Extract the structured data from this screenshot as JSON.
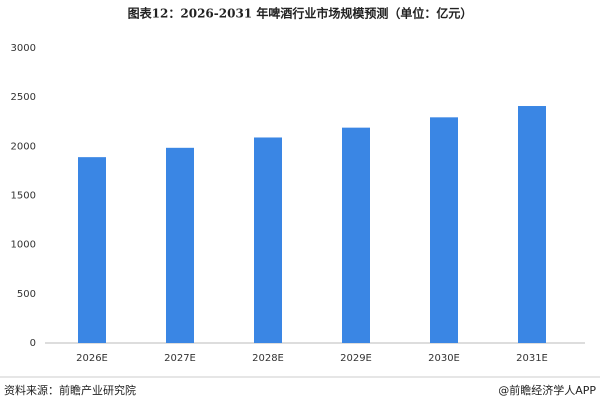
{
  "chart_data": {
    "type": "bar",
    "title": "图表12：2026-2031 年啤酒行业市场规模预测（单位：亿元）",
    "categories": [
      "2026E",
      "2027E",
      "2028E",
      "2029E",
      "2030E",
      "2031E"
    ],
    "values": [
      1890,
      1985,
      2090,
      2190,
      2295,
      2410
    ],
    "color": "#3a86e4",
    "ylim": [
      0,
      3000
    ],
    "yticks": [
      0,
      500,
      1000,
      1500,
      2000,
      2500,
      3000
    ],
    "grid": false,
    "source": "资料来源：前瞻产业研究院",
    "credit": "@前瞻经济学人APP"
  }
}
